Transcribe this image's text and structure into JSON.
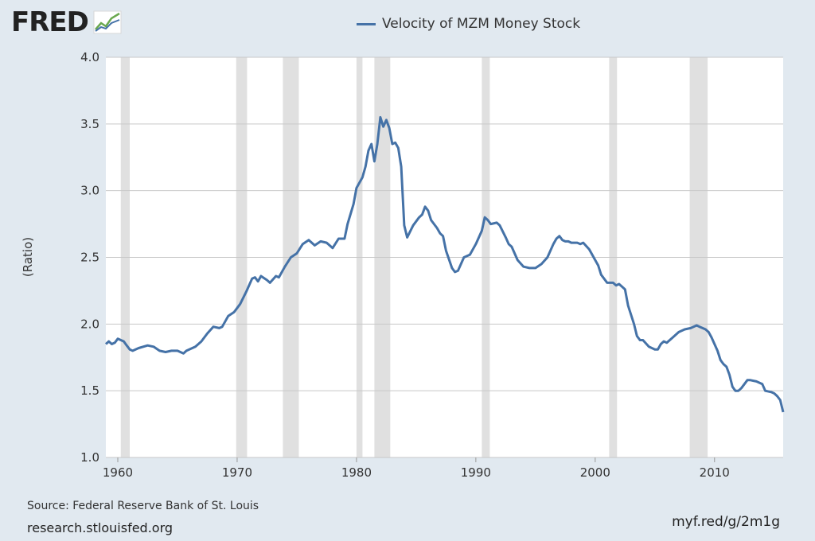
{
  "header": {
    "logo_text": "FRED",
    "logo_suffix": "®"
  },
  "footer": {
    "source": "Source: Federal Reserve Bank of St. Louis",
    "site": "research.stlouisfed.org",
    "shortlink": "myf.red/g/2m1g"
  },
  "colors": {
    "series": "#4572a7",
    "recession": "#e0e0e0",
    "plot_bg": "#ffffff",
    "grid": "#c8c8c8"
  },
  "chart_data": {
    "type": "line",
    "title": "",
    "xlabel": "",
    "ylabel": "(Ratio)",
    "xlim": [
      1959.0,
      2015.75
    ],
    "ylim": [
      1.0,
      4.0
    ],
    "yticks": [
      "1.0",
      "1.5",
      "2.0",
      "2.5",
      "3.0",
      "3.5",
      "4.0"
    ],
    "xticks": [
      "1960",
      "1970",
      "1980",
      "1990",
      "2000",
      "2010"
    ],
    "grid": "horizontal",
    "legend_position": "top-center",
    "recessions": [
      [
        1960.25,
        1961.0
      ],
      [
        1969.92,
        1970.83
      ],
      [
        1973.83,
        1975.17
      ],
      [
        1980.0,
        1980.5
      ],
      [
        1981.5,
        1982.83
      ],
      [
        1990.5,
        1991.17
      ],
      [
        2001.17,
        2001.83
      ],
      [
        2007.92,
        2009.42
      ]
    ],
    "series": [
      {
        "name": "Velocity of MZM Money Stock",
        "points": [
          [
            1959.0,
            1.85
          ],
          [
            1959.25,
            1.87
          ],
          [
            1959.5,
            1.85
          ],
          [
            1959.75,
            1.86
          ],
          [
            1960.0,
            1.89
          ],
          [
            1960.5,
            1.87
          ],
          [
            1960.75,
            1.84
          ],
          [
            1961.0,
            1.81
          ],
          [
            1961.25,
            1.8
          ],
          [
            1961.75,
            1.82
          ],
          [
            1962.5,
            1.84
          ],
          [
            1963.0,
            1.83
          ],
          [
            1963.5,
            1.8
          ],
          [
            1964.0,
            1.79
          ],
          [
            1964.5,
            1.8
          ],
          [
            1965.0,
            1.8
          ],
          [
            1965.5,
            1.78
          ],
          [
            1965.75,
            1.8
          ],
          [
            1966.5,
            1.83
          ],
          [
            1967.0,
            1.87
          ],
          [
            1967.5,
            1.93
          ],
          [
            1968.0,
            1.98
          ],
          [
            1968.5,
            1.97
          ],
          [
            1968.75,
            1.98
          ],
          [
            1969.25,
            2.06
          ],
          [
            1969.75,
            2.09
          ],
          [
            1970.25,
            2.15
          ],
          [
            1970.75,
            2.24
          ],
          [
            1971.25,
            2.34
          ],
          [
            1971.5,
            2.35
          ],
          [
            1971.75,
            2.32
          ],
          [
            1972.0,
            2.36
          ],
          [
            1972.5,
            2.33
          ],
          [
            1972.75,
            2.31
          ],
          [
            1973.25,
            2.36
          ],
          [
            1973.5,
            2.35
          ],
          [
            1974.0,
            2.43
          ],
          [
            1974.5,
            2.5
          ],
          [
            1975.0,
            2.53
          ],
          [
            1975.5,
            2.6
          ],
          [
            1976.0,
            2.63
          ],
          [
            1976.5,
            2.59
          ],
          [
            1977.0,
            2.62
          ],
          [
            1977.5,
            2.61
          ],
          [
            1978.0,
            2.57
          ],
          [
            1978.5,
            2.64
          ],
          [
            1979.0,
            2.64
          ],
          [
            1979.25,
            2.75
          ],
          [
            1979.75,
            2.9
          ],
          [
            1980.0,
            3.02
          ],
          [
            1980.5,
            3.1
          ],
          [
            1980.75,
            3.18
          ],
          [
            1981.0,
            3.3
          ],
          [
            1981.25,
            3.35
          ],
          [
            1981.5,
            3.22
          ],
          [
            1981.75,
            3.35
          ],
          [
            1982.0,
            3.55
          ],
          [
            1982.25,
            3.48
          ],
          [
            1982.5,
            3.53
          ],
          [
            1982.75,
            3.47
          ],
          [
            1983.0,
            3.35
          ],
          [
            1983.25,
            3.36
          ],
          [
            1983.5,
            3.32
          ],
          [
            1983.75,
            3.18
          ],
          [
            1984.0,
            2.74
          ],
          [
            1984.25,
            2.65
          ],
          [
            1984.75,
            2.74
          ],
          [
            1985.25,
            2.8
          ],
          [
            1985.5,
            2.82
          ],
          [
            1985.75,
            2.88
          ],
          [
            1986.0,
            2.85
          ],
          [
            1986.25,
            2.78
          ],
          [
            1986.75,
            2.72
          ],
          [
            1987.0,
            2.68
          ],
          [
            1987.25,
            2.66
          ],
          [
            1987.5,
            2.55
          ],
          [
            1988.0,
            2.42
          ],
          [
            1988.25,
            2.39
          ],
          [
            1988.5,
            2.4
          ],
          [
            1989.0,
            2.5
          ],
          [
            1989.5,
            2.52
          ],
          [
            1990.0,
            2.6
          ],
          [
            1990.5,
            2.7
          ],
          [
            1990.75,
            2.8
          ],
          [
            1991.0,
            2.78
          ],
          [
            1991.25,
            2.75
          ],
          [
            1991.75,
            2.76
          ],
          [
            1992.0,
            2.74
          ],
          [
            1992.5,
            2.65
          ],
          [
            1992.75,
            2.6
          ],
          [
            1993.0,
            2.58
          ],
          [
            1993.5,
            2.48
          ],
          [
            1994.0,
            2.43
          ],
          [
            1994.5,
            2.42
          ],
          [
            1995.0,
            2.42
          ],
          [
            1995.5,
            2.45
          ],
          [
            1996.0,
            2.5
          ],
          [
            1996.5,
            2.6
          ],
          [
            1996.75,
            2.64
          ],
          [
            1997.0,
            2.66
          ],
          [
            1997.25,
            2.63
          ],
          [
            1997.5,
            2.62
          ],
          [
            1997.75,
            2.62
          ],
          [
            1998.0,
            2.61
          ],
          [
            1998.5,
            2.61
          ],
          [
            1998.75,
            2.6
          ],
          [
            1999.0,
            2.61
          ],
          [
            1999.5,
            2.56
          ],
          [
            2000.0,
            2.48
          ],
          [
            2000.25,
            2.44
          ],
          [
            2000.5,
            2.37
          ],
          [
            2001.0,
            2.31
          ],
          [
            2001.5,
            2.31
          ],
          [
            2001.75,
            2.29
          ],
          [
            2002.0,
            2.3
          ],
          [
            2002.25,
            2.28
          ],
          [
            2002.5,
            2.26
          ],
          [
            2002.75,
            2.14
          ],
          [
            2003.25,
            2.0
          ],
          [
            2003.5,
            1.91
          ],
          [
            2003.75,
            1.88
          ],
          [
            2004.0,
            1.88
          ],
          [
            2004.5,
            1.83
          ],
          [
            2005.0,
            1.81
          ],
          [
            2005.25,
            1.81
          ],
          [
            2005.5,
            1.85
          ],
          [
            2005.75,
            1.87
          ],
          [
            2006.0,
            1.86
          ],
          [
            2006.5,
            1.9
          ],
          [
            2007.0,
            1.94
          ],
          [
            2007.5,
            1.96
          ],
          [
            2008.0,
            1.97
          ],
          [
            2008.5,
            1.99
          ],
          [
            2008.75,
            1.98
          ],
          [
            2009.25,
            1.96
          ],
          [
            2009.5,
            1.94
          ],
          [
            2009.75,
            1.9
          ],
          [
            2010.25,
            1.8
          ],
          [
            2010.5,
            1.73
          ],
          [
            2010.75,
            1.7
          ],
          [
            2011.0,
            1.68
          ],
          [
            2011.25,
            1.62
          ],
          [
            2011.5,
            1.53
          ],
          [
            2011.75,
            1.5
          ],
          [
            2012.0,
            1.5
          ],
          [
            2012.25,
            1.52
          ],
          [
            2012.75,
            1.58
          ],
          [
            2013.0,
            1.58
          ],
          [
            2013.5,
            1.57
          ],
          [
            2014.0,
            1.55
          ],
          [
            2014.25,
            1.5
          ],
          [
            2014.75,
            1.49
          ],
          [
            2015.0,
            1.48
          ],
          [
            2015.25,
            1.46
          ],
          [
            2015.5,
            1.43
          ],
          [
            2015.75,
            1.34
          ]
        ]
      }
    ]
  }
}
